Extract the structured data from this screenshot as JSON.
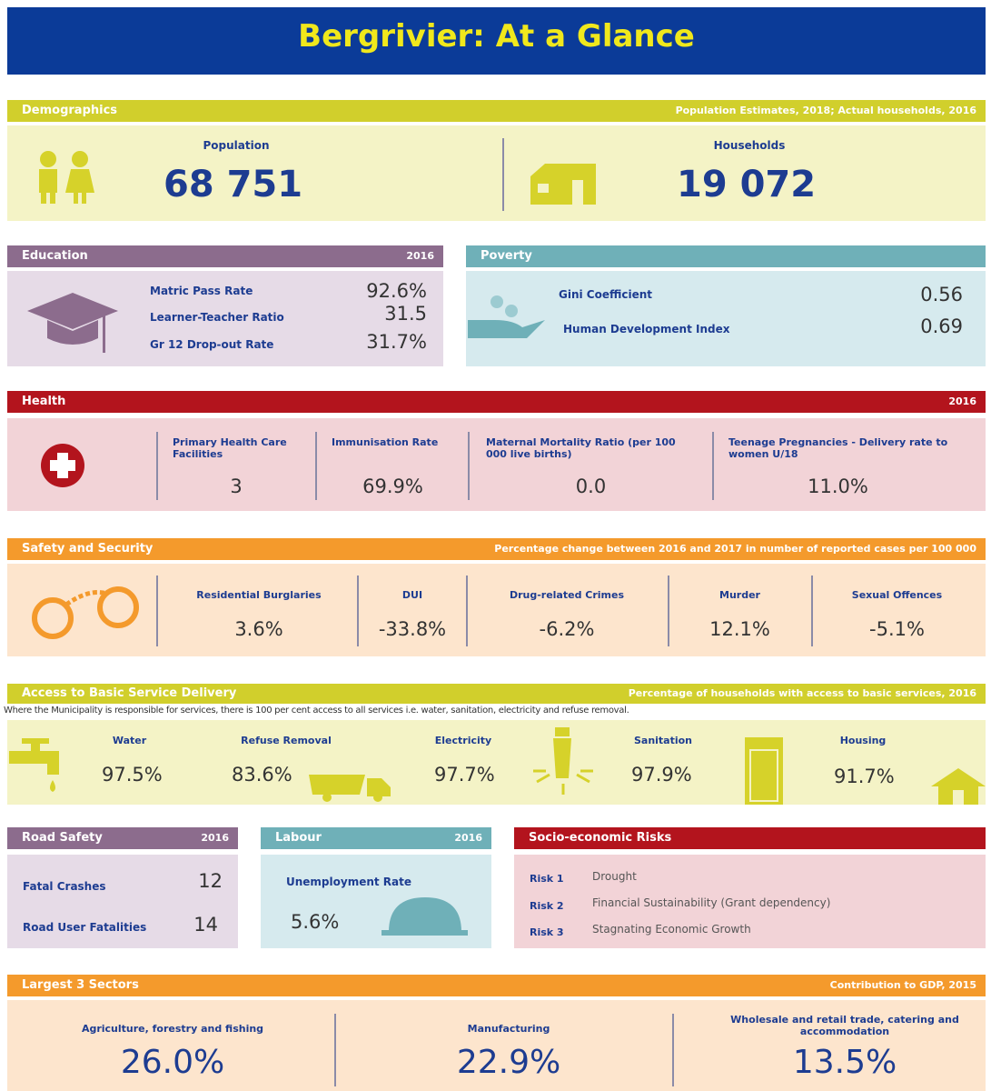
{
  "title": "Bergrivier: At a Glance",
  "demographics": {
    "header": "Demographics",
    "note": "Population Estimates, 2018; Actual households, 2016",
    "population_label": "Population",
    "population": "68 751",
    "households_label": "Households",
    "households": "19 072"
  },
  "education": {
    "header": "Education",
    "year": "2016",
    "items": [
      {
        "label": "Matric Pass Rate",
        "value": "92.6%"
      },
      {
        "label": "Learner-Teacher Ratio",
        "value": "31.5"
      },
      {
        "label": "Gr 12 Drop-out Rate",
        "value": "31.7%"
      }
    ]
  },
  "poverty": {
    "header": "Poverty",
    "items": [
      {
        "label": "Gini Coefficient",
        "value": "0.56"
      },
      {
        "label": "Human Development Index",
        "value": "0.69"
      }
    ]
  },
  "health": {
    "header": "Health",
    "year": "2016",
    "items": [
      {
        "label": "Primary Health Care Facilities",
        "value": "3"
      },
      {
        "label": "Immunisation Rate",
        "value": "69.9%"
      },
      {
        "label": "Maternal Mortality Ratio (per 100 000 live births)",
        "value": "0.0"
      },
      {
        "label": "Teenage Pregnancies - Delivery rate to women U/18",
        "value": "11.0%"
      }
    ]
  },
  "safety": {
    "header": "Safety and Security",
    "note": "Percentage change between 2016 and 2017 in number of reported cases per 100 000",
    "items": [
      {
        "label": "Residential Burglaries",
        "value": "3.6%"
      },
      {
        "label": "DUI",
        "value": "-33.8%"
      },
      {
        "label": "Drug-related Crimes",
        "value": "-6.2%"
      },
      {
        "label": "Murder",
        "value": "12.1%"
      },
      {
        "label": "Sexual Offences",
        "value": "-5.1%"
      }
    ]
  },
  "services": {
    "header": "Access to Basic Service Delivery",
    "note": "Percentage of households with access to basic services, 2016",
    "subnote": "Where the Municipality is responsible for services, there is 100 per cent access to all services i.e. water, sanitation, electricity and refuse removal.",
    "items": [
      {
        "label": "Water",
        "value": "97.5%"
      },
      {
        "label": "Refuse Removal",
        "value": "83.6%"
      },
      {
        "label": "Electricity",
        "value": "97.7%"
      },
      {
        "label": "Sanitation",
        "value": "97.9%"
      },
      {
        "label": "Housing",
        "value": "91.7%"
      }
    ]
  },
  "road_safety": {
    "header": "Road Safety",
    "year": "2016",
    "items": [
      {
        "label": "Fatal Crashes",
        "value": "12"
      },
      {
        "label": "Road User Fatalities",
        "value": "14"
      }
    ]
  },
  "labour": {
    "header": "Labour",
    "year": "2016",
    "label": "Unemployment Rate",
    "value": "5.6%"
  },
  "risks": {
    "header": "Socio-economic Risks",
    "items": [
      {
        "label": "Risk 1",
        "value": "Drought"
      },
      {
        "label": "Risk 2",
        "value": "Financial Sustainability (Grant dependency)"
      },
      {
        "label": "Risk 3",
        "value": "Stagnating Economic Growth"
      }
    ]
  },
  "sectors": {
    "header": "Largest 3 Sectors",
    "note": "Contribution to GDP, 2015",
    "items": [
      {
        "label": "Agriculture, forestry and fishing",
        "value": "26.0%"
      },
      {
        "label": "Manufacturing",
        "value": "22.9%"
      },
      {
        "label": "Wholesale and retail trade, catering and accommodation",
        "value": "13.5%"
      }
    ]
  }
}
